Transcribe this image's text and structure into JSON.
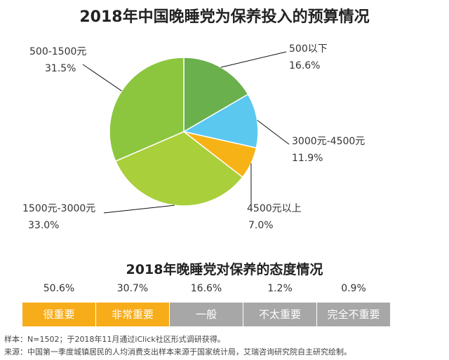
{
  "pie_title": "2018年中国晚睡党为保养投入的预算情况",
  "attitude_title": "2018年晚睡党对保养的态度情况",
  "chart_data": [
    {
      "type": "pie",
      "title": "2018年中国晚睡党为保养投入的预算情况",
      "slices": [
        {
          "label": "500以下",
          "value": 16.6,
          "display": "16.6%",
          "color": "#6ab04c"
        },
        {
          "label": "3000元-4500元",
          "value": 11.9,
          "display": "11.9%",
          "color": "#5bc8f0"
        },
        {
          "label": "4500元以上",
          "value": 7.0,
          "display": "7.0%",
          "color": "#f7b215"
        },
        {
          "label": "1500元-3000元",
          "value": 33.0,
          "display": "33.0%",
          "color": "#a9cf3b"
        },
        {
          "label": "500-1500元",
          "value": 31.5,
          "display": "31.5%",
          "color": "#8cc63f"
        }
      ]
    },
    {
      "type": "table",
      "title": "2018年晚睡党对保养的态度情况",
      "categories": [
        "很重要",
        "非常重要",
        "一般",
        "不太重要",
        "完全不重要"
      ],
      "values": [
        "50.6%",
        "30.7%",
        "16.6%",
        "1.2%",
        "0.9%"
      ],
      "colors": [
        "#f7ac19",
        "#f7ac19",
        "#a7a7a7",
        "#a7a7a7",
        "#a7a7a7"
      ]
    }
  ],
  "footnote": {
    "sample": "样本：N=1502；于2018年11月通过iClick社区形式调研获得。",
    "source": "来源：中国第一季度城镇居民的人均消费支出样本来源于国家统计局，艾瑞咨询研究院自主研究绘制。"
  }
}
